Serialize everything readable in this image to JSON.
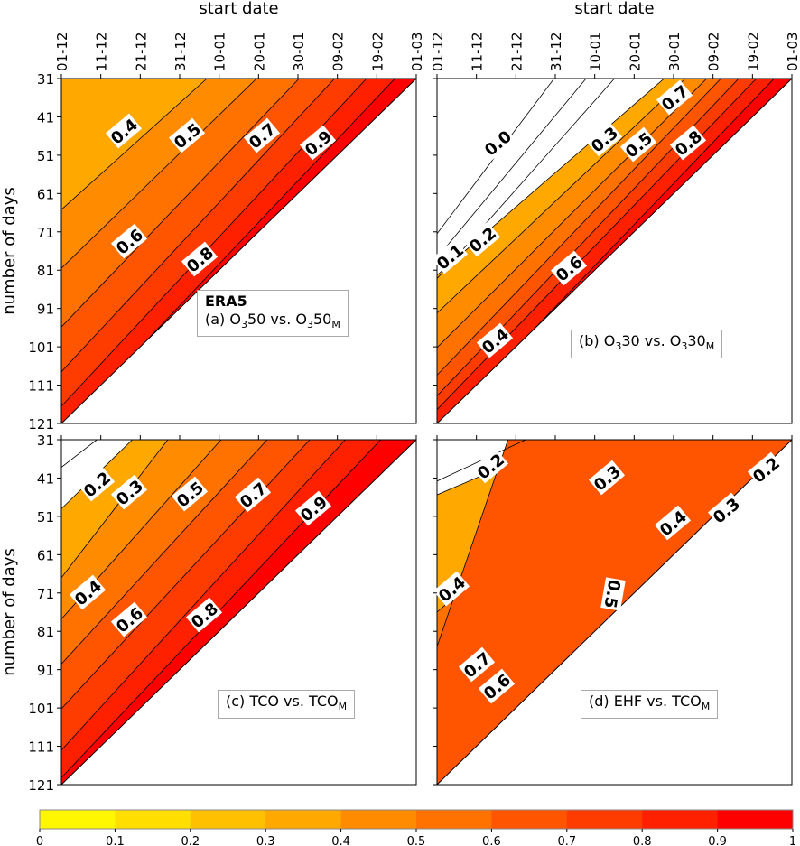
{
  "chart_data": {
    "type": "heatmap",
    "x_axis_title": "start date",
    "y_axis_title": "number of days",
    "x_ticks": [
      "01-12",
      "11-12",
      "21-12",
      "31-12",
      "10-01",
      "20-01",
      "30-01",
      "09-02",
      "19-02",
      "01-03"
    ],
    "y_ticks": [
      "31",
      "41",
      "51",
      "61",
      "71",
      "81",
      "91",
      "101",
      "111",
      "121"
    ],
    "colorbar": {
      "levels": [
        0,
        0.1,
        0.2,
        0.3,
        0.4,
        0.5,
        0.6,
        0.7,
        0.8,
        0.9,
        1
      ],
      "tick_labels": [
        "0",
        "0.1",
        "0.2",
        "0.3",
        "0.4",
        "0.5",
        "0.6",
        "0.7",
        "0.8",
        "0.9",
        "1"
      ],
      "colors": [
        "#fff700",
        "#ffde00",
        "#ffc000",
        "#ffa800",
        "#ff8c00",
        "#ff7200",
        "#ff5500",
        "#ff3c00",
        "#ff2000",
        "#ff0000"
      ]
    },
    "panels": [
      {
        "id": "a",
        "title": "ERA5",
        "legend": [
          {
            "t": "(a) O"
          },
          {
            "s": "3"
          },
          {
            "t": "50 vs. O"
          },
          {
            "s": "3"
          },
          {
            "t": "50"
          },
          {
            "s": "M"
          }
        ],
        "min_level": 0.3,
        "contour_labels": [
          "0.4",
          "0.5",
          "0.7",
          "0.9",
          "0.6",
          "0.8"
        ]
      },
      {
        "id": "b",
        "legend": [
          {
            "t": "(b) O"
          },
          {
            "s": "3"
          },
          {
            "t": "30 vs. O"
          },
          {
            "s": "3"
          },
          {
            "t": "30"
          },
          {
            "s": "M"
          }
        ],
        "min_level": 0.3,
        "contour_labels": [
          "0.0",
          "0.3",
          "0.5",
          "0.7",
          "0.8",
          "0.1",
          "0.2",
          "0.4",
          "0.6"
        ]
      },
      {
        "id": "c",
        "legend": [
          {
            "t": "(c) TCO vs. TCO"
          },
          {
            "s": "M"
          }
        ],
        "min_level": 0.3,
        "contour_labels": [
          "0.2",
          "0.3",
          "0.5",
          "0.7",
          "0.9",
          "0.4",
          "0.6",
          "0.8"
        ]
      },
      {
        "id": "d",
        "legend": [
          {
            "t": "(d) EHF vs. TCO"
          },
          {
            "s": "M"
          }
        ],
        "min_level": 0.3,
        "contour_labels": [
          "0.2",
          "0.3",
          "0.4",
          "0.3",
          "0.2",
          "0.4",
          "0.5",
          "0.7",
          "0.6"
        ]
      }
    ]
  }
}
